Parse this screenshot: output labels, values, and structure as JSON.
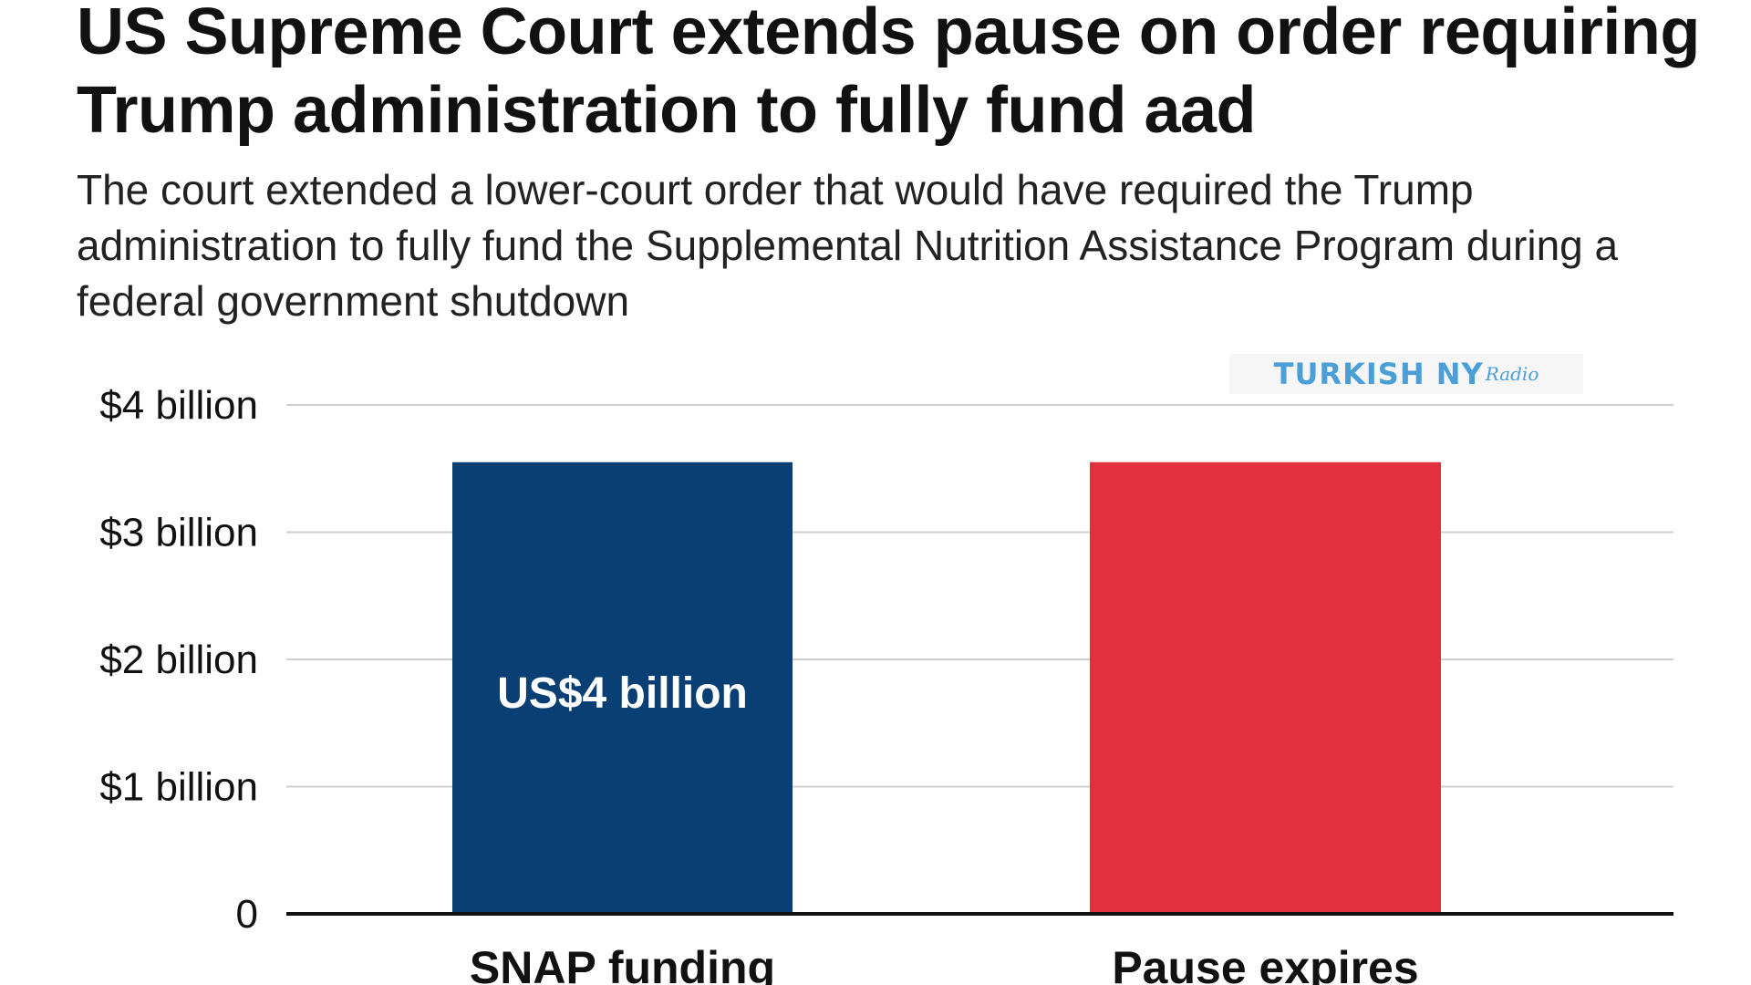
{
  "chart_data": {
    "type": "bar",
    "title": "US Supreme Court extends pause on order requiring Trump administration to fully fund aad",
    "subtitle": "The court extended a lower-court order that would have required the Trump administration to fully fund the Supplemental Nutrition Assistance Program during a federal government shutdown",
    "categories": [
      "SNAP funding",
      "Pause expires"
    ],
    "values": [
      3.55,
      3.55
    ],
    "colors": [
      "#0a3f73",
      "#e3303e"
    ],
    "data_labels": [
      "US$4 billion",
      ""
    ],
    "yticks": [
      0,
      1,
      2,
      3,
      4
    ],
    "ytick_labels": [
      "0",
      "$1 billion",
      "$2 billion",
      "$3 billion",
      "$4 billion"
    ],
    "ylim": [
      0,
      4
    ],
    "xlabel": "",
    "ylabel": "",
    "grid": true
  },
  "watermark": {
    "main": "TURKISH NY",
    "script": "Radio"
  }
}
